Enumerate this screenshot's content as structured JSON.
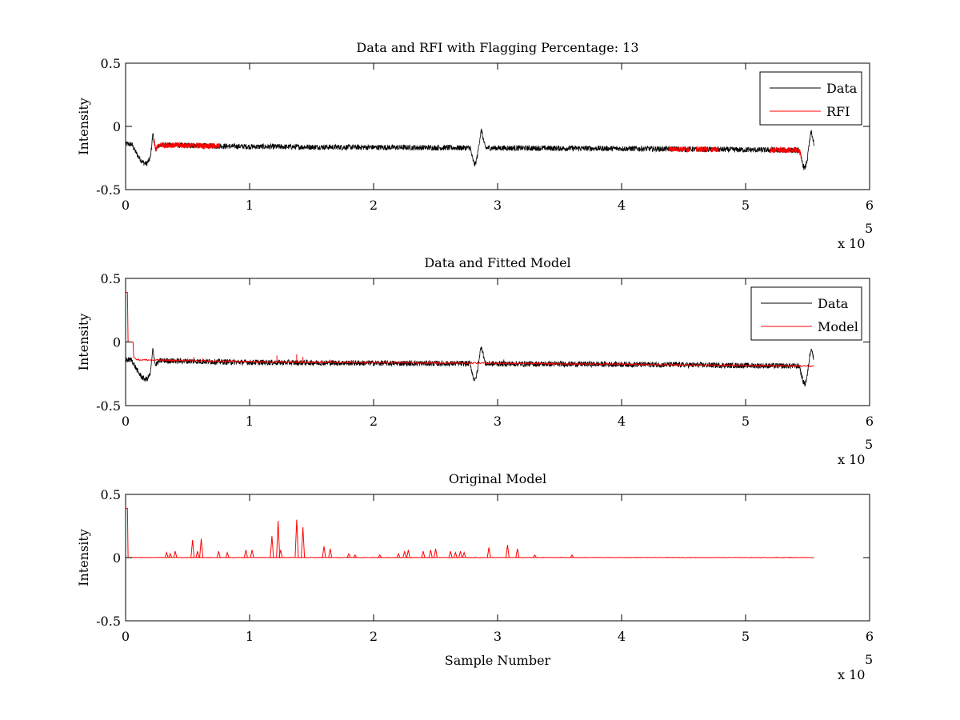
{
  "chart_data": [
    {
      "type": "line",
      "title": "Data and RFI with Flagging Percentage: 13",
      "xlabel": "",
      "ylabel": "Intensity",
      "xlim": [
        0,
        600000
      ],
      "ylim": [
        -0.5,
        0.5
      ],
      "xticks": [
        0,
        1,
        2,
        3,
        4,
        5,
        6
      ],
      "yticks": [
        "0.5",
        "0",
        "-0.5"
      ],
      "x_multiplier": "x 10",
      "x_exponent": "5",
      "legend_position": "top-right",
      "series": [
        {
          "name": "Data",
          "color": "#000000",
          "kind": "noisy",
          "x_end": 555000,
          "baseline_points": [
            [
              0,
              -0.14
            ],
            [
              20000,
              -0.145
            ],
            [
              100000,
              -0.16
            ],
            [
              280000,
              -0.17
            ],
            [
              400000,
              -0.175
            ],
            [
              550000,
              -0.19
            ]
          ],
          "noise": 0.022,
          "bumps": [
            {
              "center": 17000,
              "width": 12000,
              "amp": -0.15,
              "shape": "dip"
            },
            {
              "center": 22000,
              "width": 2000,
              "amp": 0.16,
              "shape": "spike"
            },
            {
              "center": 282000,
              "width": 4000,
              "amp": -0.13,
              "shape": "dip"
            },
            {
              "center": 287000,
              "width": 3000,
              "amp": 0.14,
              "shape": "spike"
            },
            {
              "center": 548000,
              "width": 4500,
              "amp": -0.14,
              "shape": "dip"
            },
            {
              "center": 553000,
              "width": 3000,
              "amp": 0.15,
              "shape": "spike"
            }
          ]
        },
        {
          "name": "RFI",
          "color": "#ff0000",
          "kind": "segments",
          "noise": 0.022,
          "segments": [
            [
              23000,
              76000
            ],
            [
              438000,
              455000
            ],
            [
              460000,
              470000
            ],
            [
              472000,
              478000
            ],
            [
              520000,
              545000
            ]
          ]
        }
      ]
    },
    {
      "type": "line",
      "title": "Data and Fitted Model",
      "xlabel": "",
      "ylabel": "Intensity",
      "xlim": [
        0,
        600000
      ],
      "ylim": [
        -0.5,
        0.5
      ],
      "xticks": [
        0,
        1,
        2,
        3,
        4,
        5,
        6
      ],
      "yticks": [
        "0.5",
        "0",
        "-0.5"
      ],
      "x_multiplier": "x 10",
      "x_exponent": "5",
      "legend_position": "top-right",
      "series": [
        {
          "name": "Data",
          "color": "#000000",
          "kind": "noisy",
          "x_end": 555000,
          "baseline_points": [
            [
              0,
              -0.14
            ],
            [
              20000,
              -0.145
            ],
            [
              100000,
              -0.16
            ],
            [
              280000,
              -0.17
            ],
            [
              400000,
              -0.175
            ],
            [
              550000,
              -0.19
            ]
          ],
          "noise": 0.022,
          "bumps": [
            {
              "center": 17000,
              "width": 12000,
              "amp": -0.15,
              "shape": "dip"
            },
            {
              "center": 22000,
              "width": 2000,
              "amp": 0.16,
              "shape": "spike"
            },
            {
              "center": 282000,
              "width": 4000,
              "amp": -0.13,
              "shape": "dip"
            },
            {
              "center": 287000,
              "width": 3000,
              "amp": 0.14,
              "shape": "spike"
            },
            {
              "center": 548000,
              "width": 4500,
              "amp": -0.14,
              "shape": "dip"
            },
            {
              "center": 553000,
              "width": 3000,
              "amp": 0.15,
              "shape": "spike"
            }
          ]
        },
        {
          "name": "Model",
          "color": "#ff0000",
          "kind": "model",
          "x_end": 555000,
          "points": [
            [
              0,
              0.39
            ],
            [
              1500,
              0.39
            ],
            [
              2000,
              0.0
            ],
            [
              6000,
              0.0
            ],
            [
              6500,
              -0.12
            ],
            [
              10000,
              -0.14
            ],
            [
              100000,
              -0.155
            ],
            [
              280000,
              -0.165
            ],
            [
              400000,
              -0.175
            ],
            [
              555000,
              -0.19
            ]
          ],
          "spikes": [
            [
              55000,
              0.03
            ],
            [
              62000,
              0.02
            ],
            [
              122000,
              0.05
            ],
            [
              138000,
              0.06
            ],
            [
              143000,
              0.04
            ],
            [
              165000,
              0.02
            ],
            [
              245000,
              0.02
            ],
            [
              305000,
              0.03
            ]
          ],
          "noise": 0.006
        }
      ]
    },
    {
      "type": "line",
      "title": "Original Model",
      "xlabel": "Sample Number",
      "ylabel": "Intensity",
      "xlim": [
        0,
        600000
      ],
      "ylim": [
        -0.5,
        0.5
      ],
      "xticks": [
        0,
        1,
        2,
        3,
        4,
        5,
        6
      ],
      "yticks": [
        "0.5",
        "0",
        "-0.5"
      ],
      "x_multiplier": "x 10",
      "x_exponent": "5",
      "series": [
        {
          "color": "#ff0000",
          "kind": "spiky",
          "x_end": 555000,
          "start_spike": 0.39,
          "noise": 0.004,
          "spikes": [
            [
              33000,
              0.04
            ],
            [
              36000,
              0.03
            ],
            [
              40000,
              0.05
            ],
            [
              54000,
              0.14
            ],
            [
              58000,
              0.05
            ],
            [
              61000,
              0.15
            ],
            [
              75000,
              0.05
            ],
            [
              82000,
              0.04
            ],
            [
              97000,
              0.06
            ],
            [
              102000,
              0.06
            ],
            [
              118000,
              0.17
            ],
            [
              123000,
              0.29
            ],
            [
              125000,
              0.06
            ],
            [
              138000,
              0.3
            ],
            [
              143000,
              0.24
            ],
            [
              160000,
              0.09
            ],
            [
              165000,
              0.07
            ],
            [
              180000,
              0.03
            ],
            [
              185000,
              0.02
            ],
            [
              205000,
              0.02
            ],
            [
              220000,
              0.03
            ],
            [
              225000,
              0.05
            ],
            [
              228000,
              0.06
            ],
            [
              240000,
              0.05
            ],
            [
              246000,
              0.06
            ],
            [
              250000,
              0.07
            ],
            [
              262000,
              0.05
            ],
            [
              266000,
              0.04
            ],
            [
              270000,
              0.05
            ],
            [
              273000,
              0.04
            ],
            [
              293000,
              0.08
            ],
            [
              308000,
              0.1
            ],
            [
              316000,
              0.07
            ],
            [
              330000,
              0.02
            ],
            [
              360000,
              0.02
            ]
          ]
        }
      ]
    }
  ]
}
